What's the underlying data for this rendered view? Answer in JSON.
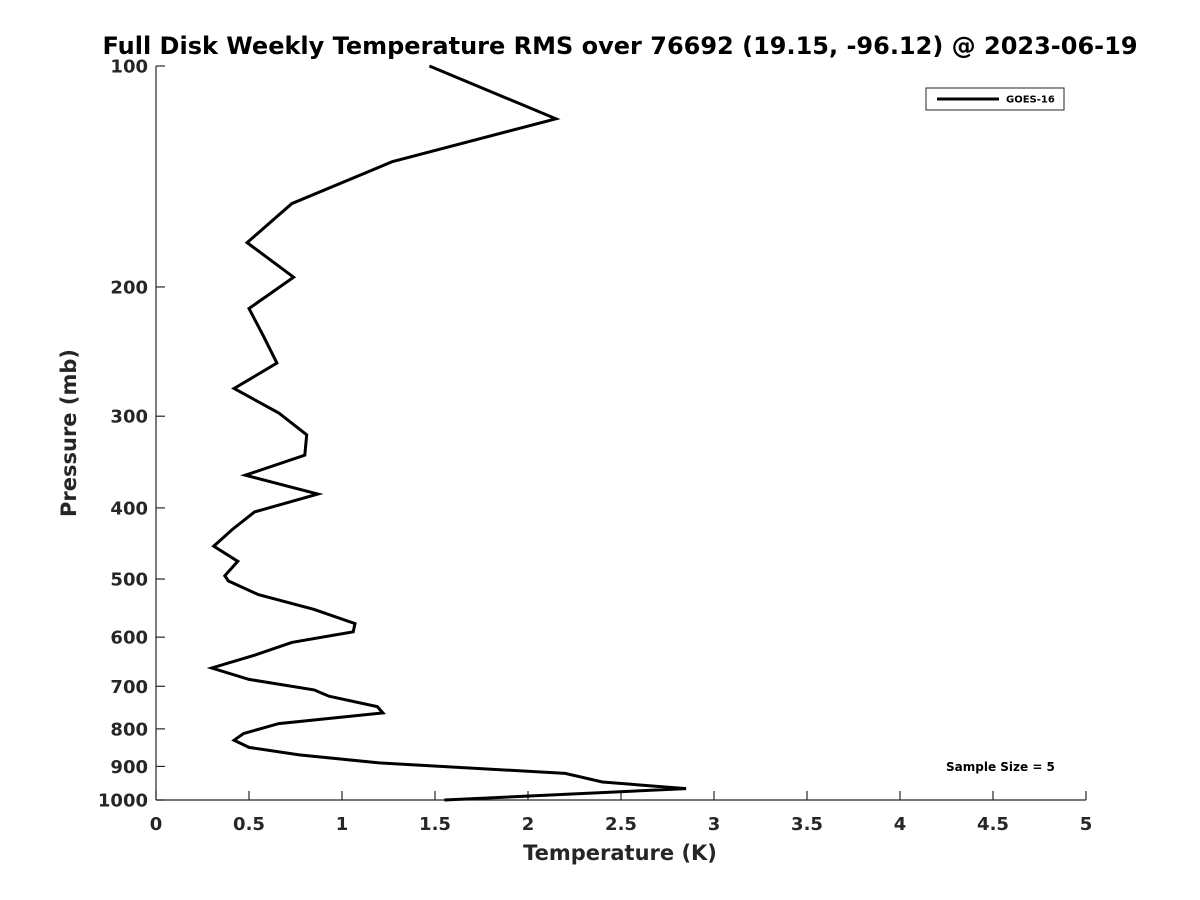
{
  "chart_data": {
    "type": "line",
    "title": "Full Disk Weekly Temperature RMS over 76692 (19.15, -96.12) @ 2023-06-19",
    "xlabel": "Temperature (K)",
    "ylabel": "Pressure (mb)",
    "xlim": [
      0,
      5
    ],
    "ylim": [
      100,
      1000
    ],
    "y_scale": "log",
    "y_reversed": true,
    "grid": false,
    "legend_placement": "top-right",
    "x_ticks": [
      0,
      0.5,
      1,
      1.5,
      2,
      2.5,
      3,
      3.5,
      4,
      4.5,
      5
    ],
    "x_tick_labels": [
      "0",
      "0.5",
      "1",
      "1.5",
      "2",
      "2.5",
      "3",
      "3.5",
      "4",
      "4.5",
      "5"
    ],
    "y_ticks": [
      100,
      200,
      300,
      400,
      500,
      600,
      700,
      800,
      900,
      1000
    ],
    "y_tick_labels": [
      "100",
      "200",
      "300",
      "400",
      "500",
      "600",
      "700",
      "800",
      "900",
      "1000"
    ],
    "annotation": "Sample Size = 5",
    "series": [
      {
        "name": "GOES-16",
        "color": "#000000",
        "x": [
          1.47,
          2.15,
          1.27,
          0.73,
          0.49,
          0.74,
          0.5,
          0.58,
          0.65,
          0.42,
          0.66,
          0.81,
          0.8,
          0.48,
          0.87,
          0.53,
          0.41,
          0.31,
          0.44,
          0.37,
          0.39,
          0.55,
          0.85,
          1.07,
          1.06,
          0.73,
          0.53,
          0.3,
          0.5,
          0.85,
          0.93,
          1.19,
          1.22,
          0.66,
          0.47,
          0.42,
          0.5,
          0.77,
          1.2,
          2.2,
          2.4,
          2.85,
          1.55
        ],
        "y": [
          100,
          118,
          135,
          154,
          174,
          194,
          214,
          234,
          254,
          275,
          297,
          318,
          339,
          361,
          383,
          405,
          428,
          451,
          473,
          495,
          503,
          525,
          550,
          575,
          590,
          610,
          635,
          661,
          685,
          708,
          722,
          746,
          761,
          787,
          812,
          829,
          848,
          868,
          890,
          920,
          945,
          965,
          1000
        ]
      }
    ]
  }
}
